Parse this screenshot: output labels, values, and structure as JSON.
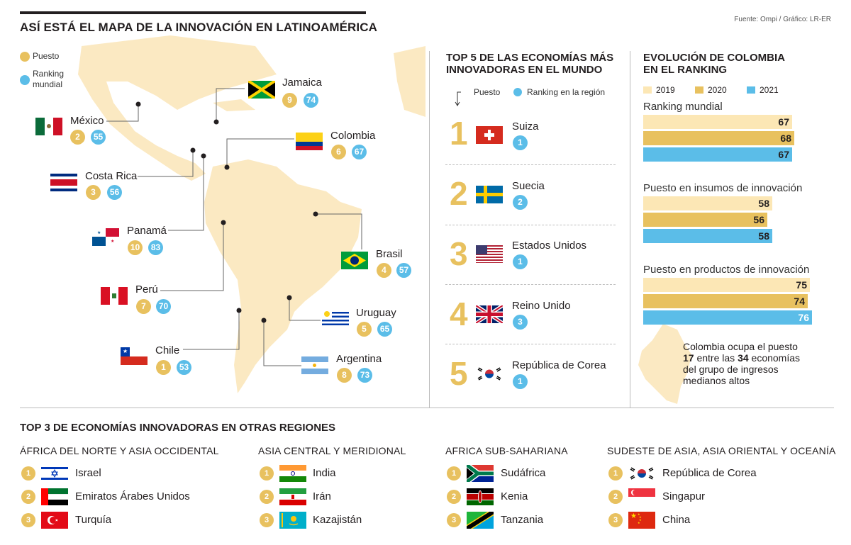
{
  "header": {
    "title": "ASÍ ESTÁ EL MAPA DE LA INNOVACIÓN EN LATINOAMÉRICA",
    "source": "Fuente: Ompi / Gráfico: LR-ER"
  },
  "map_legend": {
    "puesto": "Puesto",
    "ranking_line1": "Ranking",
    "ranking_line2": "mundial"
  },
  "latam": [
    {
      "name": "México",
      "puesto": "2",
      "ranking": "55"
    },
    {
      "name": "Jamaica",
      "puesto": "9",
      "ranking": "74"
    },
    {
      "name": "Colombia",
      "puesto": "6",
      "ranking": "67"
    },
    {
      "name": "Costa Rica",
      "puesto": "3",
      "ranking": "56"
    },
    {
      "name": "Panamá",
      "puesto": "10",
      "ranking": "83"
    },
    {
      "name": "Brasil",
      "puesto": "4",
      "ranking": "57"
    },
    {
      "name": "Perú",
      "puesto": "7",
      "ranking": "70"
    },
    {
      "name": "Uruguay",
      "puesto": "5",
      "ranking": "65"
    },
    {
      "name": "Chile",
      "puesto": "1",
      "ranking": "53"
    },
    {
      "name": "Argentina",
      "puesto": "8",
      "ranking": "73"
    }
  ],
  "top5": {
    "title_line1": "TOP 5 DE LAS ECONOMÍAS MÁS",
    "title_line2": "INNOVADORAS EN EL MUNDO",
    "legend_puesto": "Puesto",
    "legend_ranking": "Ranking en la región",
    "items": [
      {
        "rank": "1",
        "name": "Suiza",
        "region_rank": "1"
      },
      {
        "rank": "2",
        "name": "Suecia",
        "region_rank": "2"
      },
      {
        "rank": "3",
        "name": "Estados Unidos",
        "region_rank": "1"
      },
      {
        "rank": "4",
        "name": "Reino Unido",
        "region_rank": "3"
      },
      {
        "rank": "5",
        "name": "República de Corea",
        "region_rank": "1"
      }
    ]
  },
  "evolution": {
    "title_line1": "EVOLUCIÓN DE COLOMBIA",
    "title_line2": "EN EL RANKING",
    "note_line1": "Colombia ocupa el puesto",
    "note_num1": "17",
    "note_mid": " entre las ",
    "note_num2": "34",
    "note_end": " economías",
    "note_line3": "del grupo de ingresos",
    "note_line4": "medianos altos"
  },
  "chart_data": {
    "type": "bar",
    "title": "EVOLUCIÓN DE COLOMBIA EN EL RANKING",
    "orientation": "horizontal",
    "categories": [
      "Ranking mundial",
      "Puesto en insumos de innovación",
      "Puesto en productos de innovación"
    ],
    "series": [
      {
        "name": "2019",
        "color": "#fce7b5",
        "values": [
          67,
          58,
          75
        ]
      },
      {
        "name": "2020",
        "color": "#e8c15f",
        "values": [
          68,
          56,
          74
        ]
      },
      {
        "name": "2021",
        "color": "#5bbde8",
        "values": [
          67,
          58,
          76
        ]
      }
    ],
    "xlim": [
      0,
      76
    ],
    "legend": "top"
  },
  "regions": {
    "title": "TOP 3 DE ECONOMÍAS INNOVADORAS EN OTRAS REGIONES",
    "groups": [
      {
        "title": "ÁFRICA DEL NORTE Y ASIA OCCIDENTAL",
        "items": [
          {
            "rank": "1",
            "name": "Israel"
          },
          {
            "rank": "2",
            "name": "Emiratos Árabes Unidos"
          },
          {
            "rank": "3",
            "name": "Turquía"
          }
        ]
      },
      {
        "title": "ASIA CENTRAL Y MERIDIONAL",
        "items": [
          {
            "rank": "1",
            "name": "India"
          },
          {
            "rank": "2",
            "name": "Irán"
          },
          {
            "rank": "3",
            "name": "Kazajistán"
          }
        ]
      },
      {
        "title": "AFRICA SUB-SAHARIANA",
        "items": [
          {
            "rank": "1",
            "name": "Sudáfrica"
          },
          {
            "rank": "2",
            "name": "Kenia"
          },
          {
            "rank": "3",
            "name": "Tanzania"
          }
        ]
      },
      {
        "title": "SUDESTE DE ASIA, ASIA ORIENTAL Y OCEANÍA",
        "items": [
          {
            "rank": "1",
            "name": "República de Corea"
          },
          {
            "rank": "2",
            "name": "Singapur"
          },
          {
            "rank": "3",
            "name": "China"
          }
        ]
      }
    ]
  }
}
